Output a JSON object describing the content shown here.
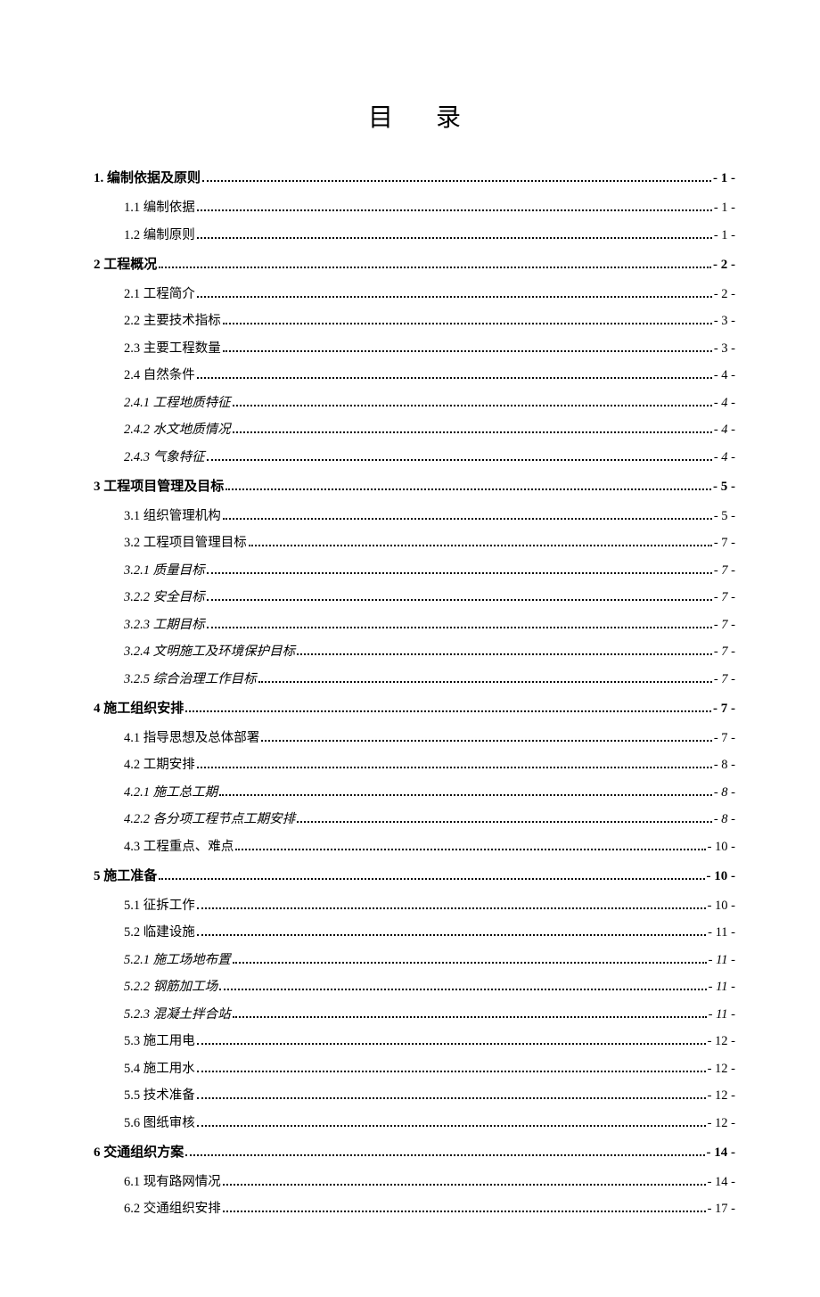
{
  "title": "目录",
  "text_color": "#000000",
  "background_color": "#ffffff",
  "entries": [
    {
      "level": 0,
      "label": "1. 编制依据及原则",
      "page": "- 1 -",
      "gap_before": false
    },
    {
      "level": 1,
      "label": "1.1 编制依据",
      "page": "- 1 -",
      "gap_before": true
    },
    {
      "level": 1,
      "label": "1.2 编制原则",
      "page": "- 1 -",
      "gap_before": false
    },
    {
      "level": 0,
      "label": "2 工程概况",
      "page": "- 2 -",
      "gap_before": true
    },
    {
      "level": 1,
      "label": "2.1 工程简介",
      "page": "- 2 -",
      "gap_before": true
    },
    {
      "level": 1,
      "label": "2.2 主要技术指标",
      "page": "- 3 -",
      "gap_before": false
    },
    {
      "level": 1,
      "label": "2.3 主要工程数量",
      "page": "- 3 -",
      "gap_before": false
    },
    {
      "level": 1,
      "label": "2.4 自然条件",
      "page": "- 4 -",
      "gap_before": false
    },
    {
      "level": 2,
      "label": "2.4.1 工程地质特征",
      "page": "- 4 -",
      "gap_before": false
    },
    {
      "level": 2,
      "label": "2.4.2 水文地质情况",
      "page": "- 4 -",
      "gap_before": false
    },
    {
      "level": 2,
      "label": "2.4.3 气象特征",
      "page": "- 4 -",
      "gap_before": false
    },
    {
      "level": 0,
      "label": "3 工程项目管理及目标",
      "page": "- 5 -",
      "gap_before": true
    },
    {
      "level": 1,
      "label": "3.1 组织管理机构",
      "page": "- 5 -",
      "gap_before": true
    },
    {
      "level": 1,
      "label": "3.2 工程项目管理目标",
      "page": "- 7 -",
      "gap_before": false
    },
    {
      "level": 2,
      "label": "3.2.1 质量目标",
      "page": "- 7 -",
      "gap_before": false
    },
    {
      "level": 2,
      "label": "3.2.2 安全目标",
      "page": "- 7 -",
      "gap_before": false
    },
    {
      "level": 2,
      "label": "3.2.3 工期目标",
      "page": "- 7 -",
      "gap_before": false
    },
    {
      "level": 2,
      "label": "3.2.4 文明施工及环境保护目标",
      "page": "- 7 -",
      "gap_before": false
    },
    {
      "level": 2,
      "label": "3.2.5 综合治理工作目标",
      "page": "- 7 -",
      "gap_before": false
    },
    {
      "level": 0,
      "label": "4 施工组织安排",
      "page": "- 7 -",
      "gap_before": true
    },
    {
      "level": 1,
      "label": "4.1 指导思想及总体部署",
      "page": "- 7 -",
      "gap_before": true
    },
    {
      "level": 1,
      "label": "4.2 工期安排",
      "page": "- 8 -",
      "gap_before": false
    },
    {
      "level": 2,
      "label": "4.2.1 施工总工期",
      "page": "- 8 -",
      "gap_before": false
    },
    {
      "level": 2,
      "label": "4.2.2 各分项工程节点工期安排",
      "page": "- 8 -",
      "gap_before": false
    },
    {
      "level": 1,
      "label": "4.3 工程重点、难点",
      "page": "- 10 -",
      "gap_before": false
    },
    {
      "level": 0,
      "label": "5 施工准备",
      "page": "- 10 -",
      "gap_before": true
    },
    {
      "level": 1,
      "label": "5.1 征拆工作",
      "page": "- 10 -",
      "gap_before": true
    },
    {
      "level": 1,
      "label": "5.2 临建设施",
      "page": "- 11 -",
      "gap_before": false
    },
    {
      "level": 2,
      "label": "5.2.1 施工场地布置",
      "page": "- 11 -",
      "gap_before": false
    },
    {
      "level": 2,
      "label": "5.2.2 钢筋加工场",
      "page": "- 11 -",
      "gap_before": false
    },
    {
      "level": 2,
      "label": "5.2.3 混凝土拌合站",
      "page": "- 11 -",
      "gap_before": false
    },
    {
      "level": 1,
      "label": "5.3 施工用电",
      "page": "- 12 -",
      "gap_before": false
    },
    {
      "level": 1,
      "label": "5.4 施工用水",
      "page": "- 12 -",
      "gap_before": false
    },
    {
      "level": 1,
      "label": "5.5 技术准备",
      "page": "- 12 -",
      "gap_before": false
    },
    {
      "level": 1,
      "label": "5.6 图纸审核",
      "page": "- 12 -",
      "gap_before": false
    },
    {
      "level": 0,
      "label": "6 交通组织方案",
      "page": "- 14 -",
      "gap_before": true
    },
    {
      "level": 1,
      "label": "6.1 现有路网情况",
      "page": "- 14 -",
      "gap_before": true
    },
    {
      "level": 1,
      "label": "6.2 交通组织安排",
      "page": "- 17 -",
      "gap_before": false
    }
  ]
}
